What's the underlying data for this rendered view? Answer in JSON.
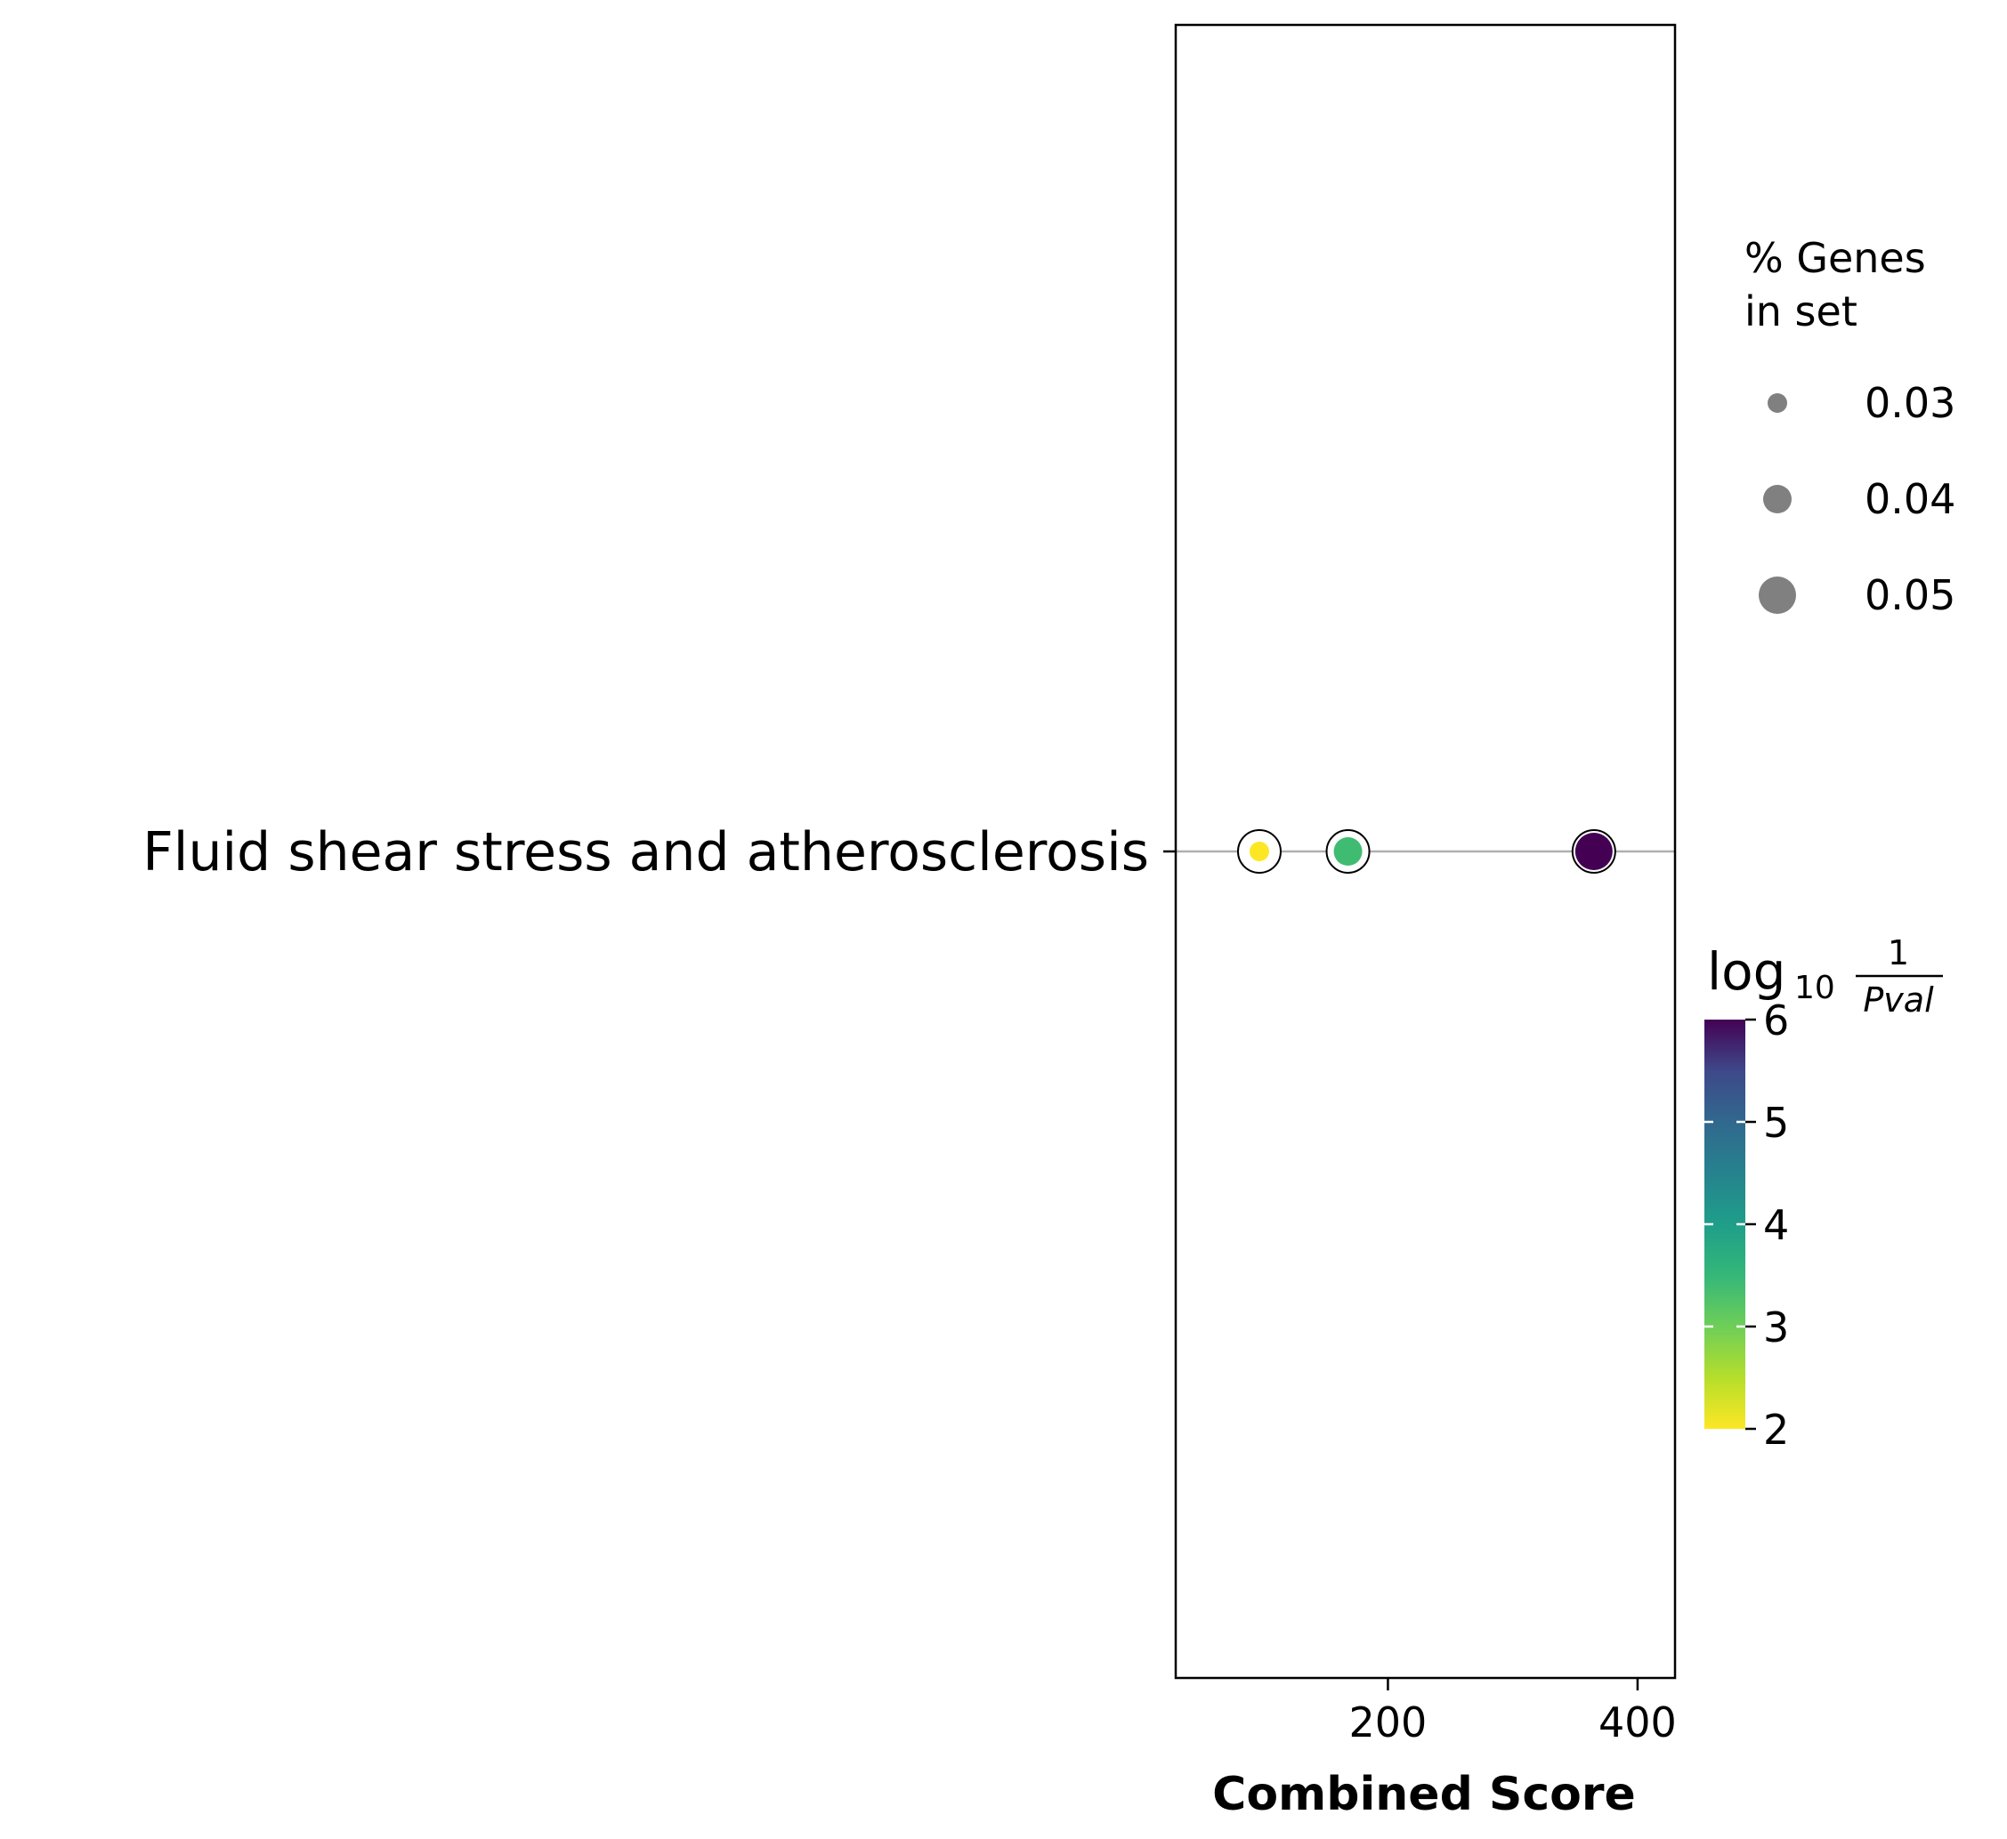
{
  "chart_data": {
    "type": "scatter",
    "title": "",
    "xlabel": "Combined Score",
    "ylabel": "",
    "xlim": [
      30,
      430
    ],
    "x_ticks": [
      200,
      400
    ],
    "grid": false,
    "categories": [
      "Fluid shear stress and atherosclerosis"
    ],
    "points": [
      {
        "category": "Fluid shear stress and atherosclerosis",
        "x": 97,
        "percent_genes": 0.03,
        "log10_inv_pval": 2.0
      },
      {
        "category": "Fluid shear stress and atherosclerosis",
        "x": 168,
        "percent_genes": 0.04,
        "log10_inv_pval": 3.4
      },
      {
        "category": "Fluid shear stress and atherosclerosis",
        "x": 365,
        "percent_genes": 0.05,
        "log10_inv_pval": 6.0
      }
    ],
    "size_legend": {
      "title_line1": "% Genes",
      "title_line2": "in set",
      "entries": [
        {
          "label": "0.03",
          "value": 0.03
        },
        {
          "label": "0.04",
          "value": 0.04
        },
        {
          "label": "0.05",
          "value": 0.05
        }
      ],
      "placement": "right"
    },
    "colorbar": {
      "title_main": "log",
      "title_sub": "10",
      "title_num": "1",
      "title_den": "Pval",
      "range": [
        2,
        6
      ],
      "ticks": [
        2,
        3,
        4,
        5,
        6
      ],
      "colormap": "viridis_r",
      "placement": "right"
    },
    "colors": {
      "guide_line": "#b0b0b0",
      "legend_marker": "#808080"
    }
  }
}
